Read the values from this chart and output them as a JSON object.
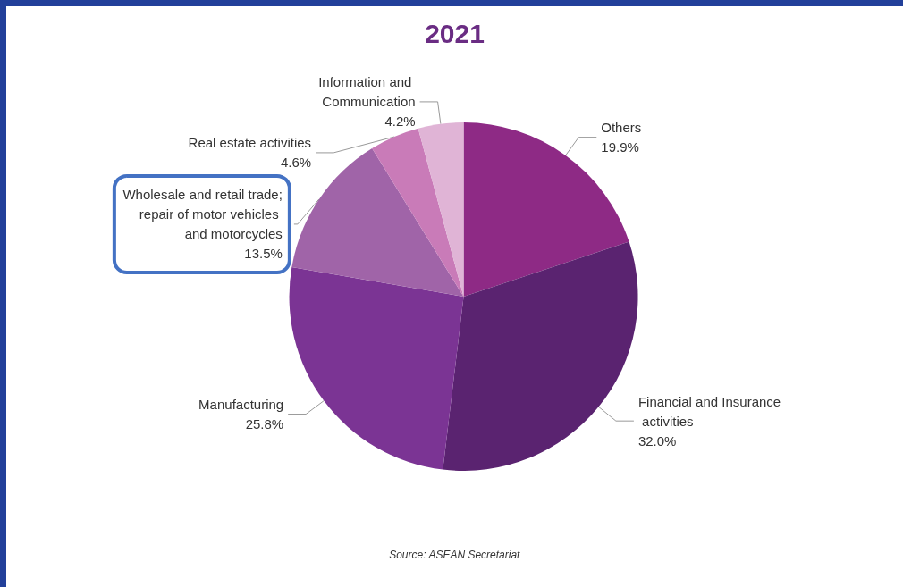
{
  "chart_data": {
    "type": "pie",
    "title": "2021",
    "categories": [
      "Others",
      "Financial and Insurance activities",
      "Manufacturing",
      "Wholesale and retail trade; repair of motor vehicles and motorcycles",
      "Real estate activities",
      "Information and Communication"
    ],
    "values": [
      19.9,
      32.0,
      25.8,
      13.5,
      4.6,
      4.2
    ],
    "value_labels": [
      "19.9%",
      "32.0%",
      "25.8%",
      "13.5%",
      "4.6%",
      "4.2%"
    ],
    "colors": [
      "#8e2a85",
      "#5a2370",
      "#7b3494",
      "#a064a8",
      "#c97bb8",
      "#e0b4d6"
    ],
    "annotations": [
      "Source: ASEAN Secretariat"
    ],
    "legend": false
  }
}
